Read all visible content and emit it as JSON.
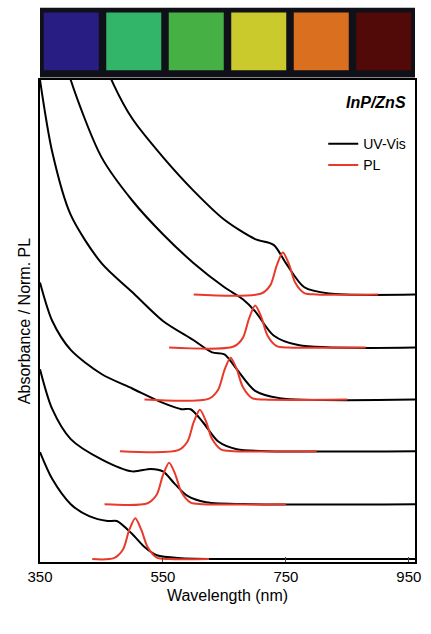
{
  "chart_data": {
    "type": "line",
    "annotation": "InP/ZnS",
    "x_label": "Wavelength (nm)",
    "y_label": "Absorbance / Norm. PL",
    "xlim": [
      350,
      960
    ],
    "xticks": [
      350,
      550,
      750,
      950
    ],
    "ylim": [
      0,
      100
    ],
    "yticks": [],
    "tick_labels": "x",
    "grid": false,
    "legend": "top right",
    "series": [
      {
        "name": "UV-Vis",
        "color": "#000000",
        "line_style": "solid",
        "curves": [
          {
            "x": [
              350,
              370,
              400,
              430,
              460,
              475,
              500,
              520,
              540,
              580,
              700,
              960
            ],
            "values": [
              22.8,
              17.2,
              12.0,
              9.5,
              8.5,
              8.5,
              5.8,
              3.1,
              1.4,
              0.8,
              0.6,
              0.6
            ]
          },
          {
            "x": [
              350,
              370,
              400,
              450,
              500,
              530,
              550,
              570,
              590,
              620,
              700,
              960
            ],
            "values": [
              40.0,
              31.7,
              25.5,
              21.3,
              18.8,
              19.3,
              18.8,
              16.1,
              13.7,
              12.4,
              12.0,
              12.0
            ]
          },
          {
            "x": [
              350,
              370,
              400,
              450,
              500,
              550,
              580,
              595,
              615,
              640,
              670,
              720,
              960
            ],
            "values": [
              58,
              50,
              44,
              39,
              36,
              33,
              31.7,
              31.7,
              29,
              25,
              23.4,
              23.0,
              23.0
            ]
          },
          {
            "x": [
              350,
              370,
              400,
              450,
              500,
              550,
              600,
              630,
              650,
              670,
              700,
              740,
              960
            ],
            "values": [
              100,
              85,
              72,
              62,
              56,
              50,
              46,
              43.5,
              43.1,
              40,
              35.5,
              34,
              33.7
            ]
          },
          {
            "x": [
              350,
              380,
              400,
              450,
              500,
              550,
              600,
              650,
              680,
              700,
              730,
              770,
              960
            ],
            "values": [
              130,
              110,
              100,
              84,
              75,
              68,
              62,
              57,
              54.5,
              52,
              47,
              45,
              44.5
            ]
          },
          {
            "x": [
              350,
              420,
              470,
              500,
              550,
              600,
              650,
              700,
              730,
              750,
              780,
              820,
              960
            ],
            "values": [
              150,
              115,
              99,
              92,
              84,
              77,
              71,
              67,
              65.8,
              62,
              57,
              55.7,
              55.5
            ]
          }
        ]
      },
      {
        "name": "PL",
        "color": "#e8392a",
        "line_style": "solid",
        "curves": [
          {
            "x": [
              435,
              470,
              485,
              495,
              505,
              515,
              525,
              540,
              560,
              625
            ],
            "values": [
              0.6,
              0.8,
              2.6,
              6.6,
              9.1,
              6.6,
              3.1,
              0.9,
              0.6,
              0.6
            ]
          },
          {
            "x": [
              455,
              525,
              540,
              550,
              560,
              570,
              580,
              595,
              615,
              750
            ],
            "values": [
              12,
              12.2,
              14,
              18,
              20.6,
              18.2,
              14.5,
              12.3,
              12,
              12
            ]
          },
          {
            "x": [
              480,
              575,
              590,
              600,
              610,
              620,
              630,
              645,
              665,
              800
            ],
            "values": [
              23,
              23.2,
              25,
              29,
              31.6,
              29.2,
              25.5,
              23.3,
              23,
              23
            ]
          },
          {
            "x": [
              520,
              625,
              640,
              650,
              660,
              670,
              680,
              695,
              715,
              850
            ],
            "values": [
              33.7,
              33.9,
              35.8,
              39.8,
              42.4,
              40,
              36.3,
              34,
              33.7,
              33.7
            ]
          },
          {
            "x": [
              560,
              665,
              680,
              690,
              700,
              710,
              720,
              735,
              755,
              880
            ],
            "values": [
              44.5,
              44.7,
              46.5,
              50.5,
              53.2,
              50.8,
              47,
              44.8,
              44.5,
              44.5
            ]
          },
          {
            "x": [
              600,
              710,
              725,
              735,
              745,
              755,
              765,
              780,
              800,
              900
            ],
            "values": [
              55.5,
              55.7,
              57.5,
              61.5,
              64.2,
              61.8,
              58,
              55.8,
              55.5,
              55.5
            ]
          }
        ]
      }
    ]
  }
}
